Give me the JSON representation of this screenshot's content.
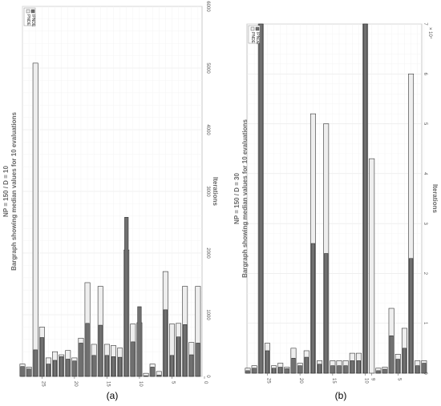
{
  "chart_data": [
    {
      "type": "bar",
      "panel_caption": "(a)",
      "title_line1": "NP = 150 / D = 10",
      "title_line2": "Bargraph showing median values for 10 evaluations",
      "value_axis_label": "Iterations",
      "value_axis_ticks": [
        "0",
        "1000",
        "2000",
        "3000",
        "4000",
        "5000",
        "6000"
      ],
      "value_axis_multiplier": "",
      "ylim": [
        0,
        6000
      ],
      "category_ticks": [
        {
          "value": 25,
          "label": "25"
        },
        {
          "value": 20,
          "label": "20"
        },
        {
          "value": 15,
          "label": "15"
        },
        {
          "value": 10,
          "label": "10"
        },
        {
          "value": 5,
          "label": "5"
        },
        {
          "value": 0,
          "label": "0"
        }
      ],
      "categories": [
        28,
        27,
        26,
        25,
        24,
        23,
        22,
        21,
        20,
        19,
        18,
        17,
        16,
        15,
        14,
        13,
        12,
        11,
        10,
        9,
        8,
        7,
        6,
        5,
        4,
        3,
        2,
        1
      ],
      "legend": [
        "PNDE",
        "IPNDE"
      ],
      "series": [
        {
          "name": "PNDE",
          "color": "#eeeeee",
          "values": [
            200,
            150,
            5080,
            800,
            300,
            400,
            350,
            420,
            300,
            620,
            1520,
            520,
            1460,
            520,
            500,
            460,
            2050,
            850,
            870,
            50,
            200,
            80,
            1700,
            850,
            860,
            1460,
            550,
            1460
          ]
        },
        {
          "name": "IPNDE",
          "color": "#707070",
          "values": [
            160,
            120,
            430,
            630,
            200,
            260,
            320,
            280,
            250,
            540,
            860,
            340,
            830,
            340,
            320,
            310,
            2580,
            560,
            1130,
            10,
            150,
            20,
            1080,
            340,
            640,
            840,
            350,
            540
          ]
        }
      ]
    },
    {
      "type": "bar",
      "panel_caption": "(b)",
      "title_line1": "NP = 150 / D = 30",
      "title_line2": "Bargraph showing median values for 10 evaluations",
      "value_axis_label": "Iterations",
      "value_axis_ticks": [
        "0",
        "1",
        "2",
        "3",
        "4",
        "5",
        "6",
        "7"
      ],
      "value_axis_multiplier": "× 10⁴",
      "ylim": [
        0,
        70000
      ],
      "category_ticks": [
        {
          "value": 25,
          "label": "25"
        },
        {
          "value": 20,
          "label": "20"
        },
        {
          "value": 15,
          "label": "15"
        },
        {
          "value": 10,
          "label": "10"
        },
        {
          "value": 9,
          "label": "9"
        },
        {
          "value": 5,
          "label": "5"
        }
      ],
      "categories": [
        28,
        27,
        26,
        25,
        24,
        23,
        22,
        21,
        20,
        19,
        18,
        17,
        16,
        15,
        14,
        13,
        12,
        11,
        10,
        9,
        8,
        7,
        6,
        5,
        4,
        3,
        2,
        1
      ],
      "legend": [
        "PNDE",
        "IPNDE"
      ],
      "series": [
        {
          "name": "PNDE",
          "color": "#eeeeee",
          "values": [
            1000,
            1500,
            70000,
            6000,
            1500,
            2000,
            1200,
            5000,
            2000,
            4500,
            52000,
            2500,
            50000,
            2500,
            2500,
            2500,
            4000,
            4000,
            70000,
            43000,
            1000,
            1200,
            13000,
            3800,
            9000,
            60000,
            2500,
            2500
          ]
        },
        {
          "name": "IPNDE",
          "color": "#707070",
          "values": [
            500,
            1000,
            70000,
            4500,
            1000,
            1200,
            900,
            3000,
            1500,
            3200,
            26000,
            1800,
            24000,
            1500,
            1500,
            1500,
            2500,
            2500,
            70000,
            0,
            500,
            800,
            7500,
            2800,
            5000,
            23000,
            1500,
            2000
          ]
        }
      ]
    }
  ]
}
